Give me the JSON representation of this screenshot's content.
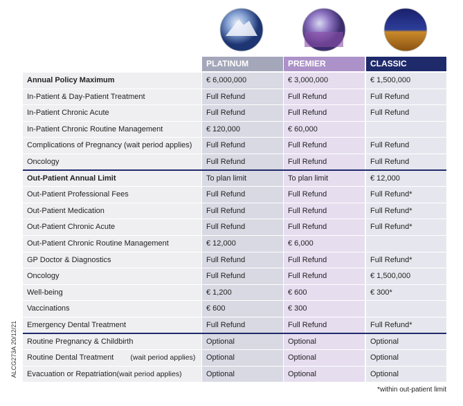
{
  "columns": [
    "PLATINUM",
    "PREMIER",
    "CLASSIC"
  ],
  "rows": [
    {
      "label": "Annual Policy Maximum",
      "bold": true,
      "cells": [
        "€ 6,000,000",
        "€ 3,000,000",
        "€ 1,500,000"
      ]
    },
    {
      "label": "In-Patient & Day-Patient Treatment",
      "cells": [
        "Full Refund",
        "Full Refund",
        "Full Refund"
      ]
    },
    {
      "label": "In-Patient Chronic Acute",
      "cells": [
        "Full Refund",
        "Full Refund",
        "Full Refund"
      ]
    },
    {
      "label": "In-Patient Chronic Routine Management",
      "cells": [
        "€ 120,000",
        "€ 60,000",
        null
      ]
    },
    {
      "label": "Complications of Pregnancy  (wait period applies)",
      "cells": [
        "Full Refund",
        "Full Refund",
        "Full Refund"
      ]
    },
    {
      "label": "Oncology",
      "cells": [
        "Full Refund",
        "Full Refund",
        "Full Refund"
      ]
    },
    {
      "label": "Out-Patient Annual Limit",
      "bold": true,
      "section_start": true,
      "cells": [
        "To plan limit",
        "To plan limit",
        "€ 12,000"
      ]
    },
    {
      "label": "Out-Patient Professional Fees",
      "cells": [
        "Full Refund",
        "Full Refund",
        "Full Refund*"
      ]
    },
    {
      "label": "Out-Patient Medication",
      "cells": [
        "Full Refund",
        "Full Refund",
        "Full Refund*"
      ]
    },
    {
      "label": "Out-Patient Chronic Acute",
      "cells": [
        "Full Refund",
        "Full Refund",
        "Full Refund*"
      ]
    },
    {
      "label": "Out-Patient Chronic Routine Management",
      "cells": [
        "€ 12,000",
        "€ 6,000",
        null
      ]
    },
    {
      "label": "GP Doctor & Diagnostics",
      "cells": [
        "Full Refund",
        "Full Refund",
        "Full Refund*"
      ]
    },
    {
      "label": "Oncology",
      "cells": [
        "Full Refund",
        "Full Refund",
        "€ 1,500,000"
      ]
    },
    {
      "label": "Well-being",
      "cells": [
        "€ 1,200",
        "€ 600",
        "€ 300*"
      ]
    },
    {
      "label": "Vaccinations",
      "cells": [
        "€ 600",
        "€ 300",
        null
      ]
    },
    {
      "label": "Emergency Dental Treatment",
      "cells": [
        "Full Refund",
        "Full Refund",
        "Full Refund*"
      ]
    },
    {
      "label": "Routine Pregnancy & Childbirth",
      "section_start": true,
      "cells": [
        "Optional",
        "Optional",
        "Optional"
      ]
    },
    {
      "label": "Routine Dental Treatment",
      "note": "(wait period applies)",
      "cells": [
        "Optional",
        "Optional",
        "Optional"
      ]
    },
    {
      "label": "Evacuation or Repatriation",
      "note": "(wait period applies)",
      "cells": [
        "Optional",
        "Optional",
        "Optional"
      ]
    }
  ],
  "footnote": "*within out-patient limit",
  "side_code": "ALCG273A 20/12/21"
}
